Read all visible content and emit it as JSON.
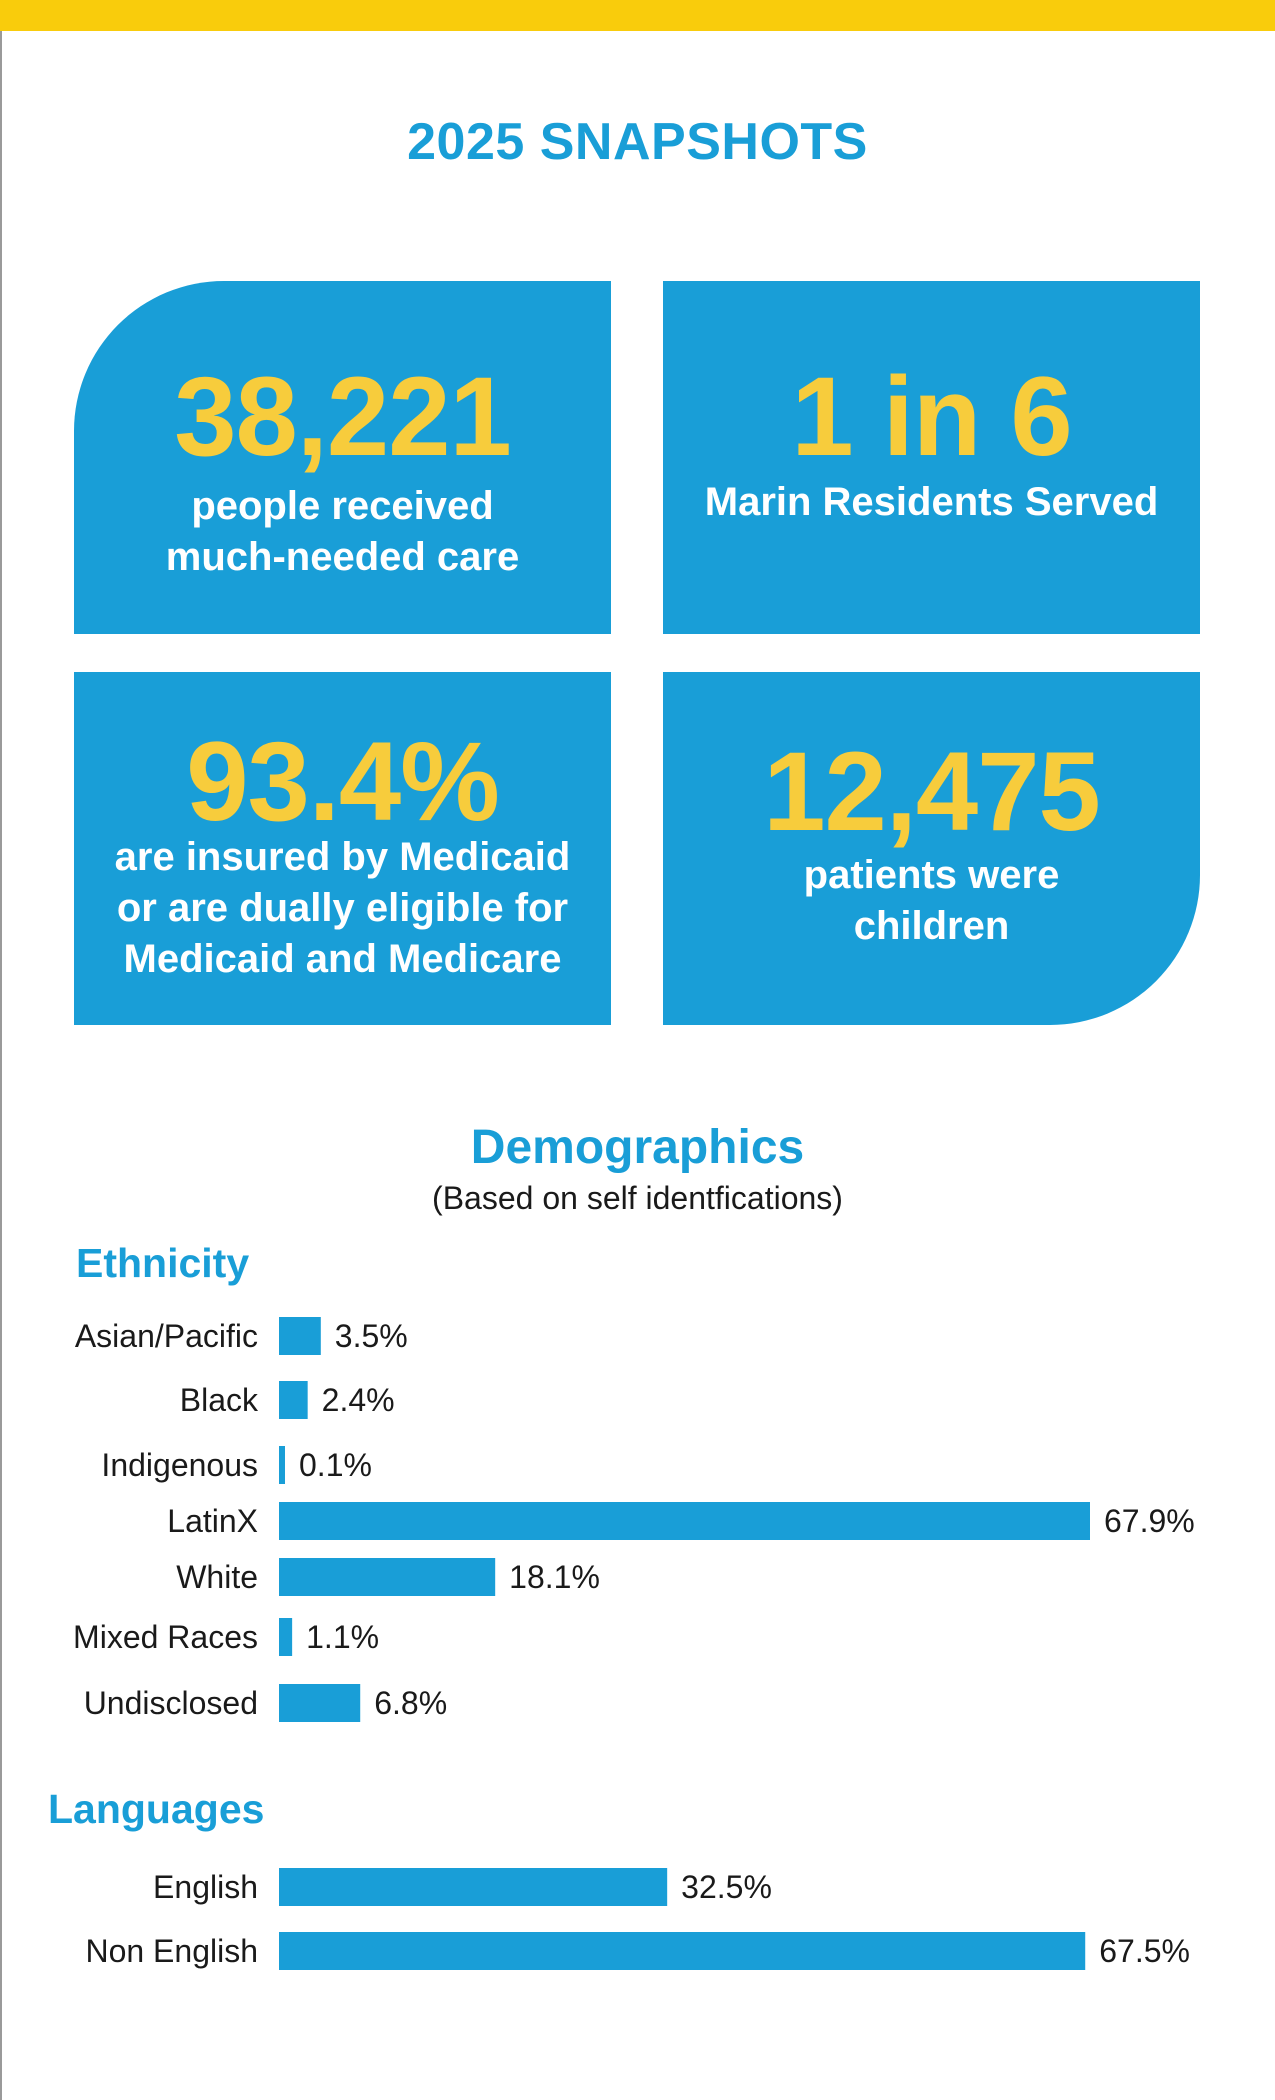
{
  "page_title": "2025 SNAPSHOTS",
  "colors": {
    "accent_blue": "#199ed7",
    "accent_yellow": "#f7cc3c",
    "top_bar": "#f9cc0c"
  },
  "stats": [
    {
      "number": "38,221",
      "label_lines": [
        "people received",
        "much-needed care"
      ]
    },
    {
      "number": "1 in 6",
      "label_lines": [
        "Marin Residents Served"
      ]
    },
    {
      "number": "93.4%",
      "label_lines": [
        "are insured by Medicaid",
        "or are dually eligible for",
        "Medicaid and Medicare"
      ]
    },
    {
      "number": "12,475",
      "label_lines": [
        "patients were",
        "children"
      ]
    }
  ],
  "demographics": {
    "title": "Demographics",
    "subtitle": "(Based on self identfications)"
  },
  "chart_data": [
    {
      "type": "bar",
      "orientation": "horizontal",
      "title": "Ethnicity",
      "categories": [
        "Asian/Pacific",
        "Black",
        "Indigenous",
        "LatinX",
        "White",
        "Mixed Races",
        "Undisclosed"
      ],
      "values": [
        3.5,
        2.4,
        0.1,
        67.9,
        18.1,
        1.1,
        6.8
      ],
      "value_labels": [
        "3.5%",
        "2.4%",
        "0.1%",
        "67.9%",
        "18.1%",
        "1.1%",
        "6.8%"
      ],
      "unit": "%"
    },
    {
      "type": "bar",
      "orientation": "horizontal",
      "title": "Languages",
      "categories": [
        "English",
        "Non English"
      ],
      "values": [
        32.5,
        67.5
      ],
      "value_labels": [
        "32.5%",
        "67.5%"
      ],
      "unit": "%"
    }
  ]
}
